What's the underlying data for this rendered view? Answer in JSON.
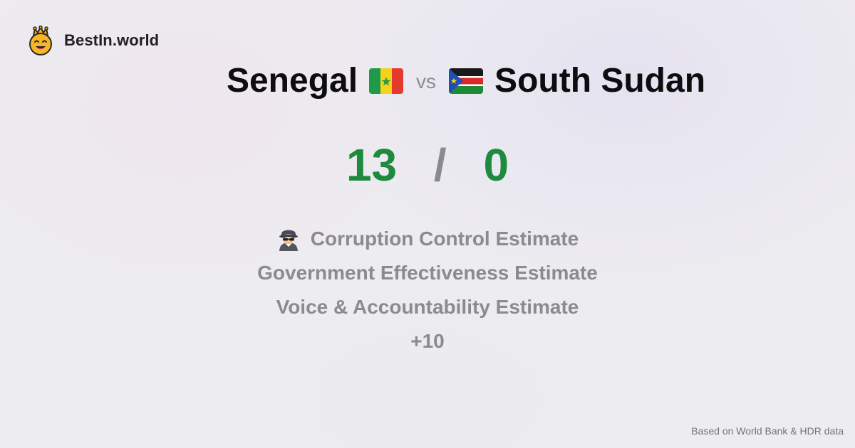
{
  "brand": {
    "name": "BestIn.world",
    "icon": "crowned-smiley-face-icon"
  },
  "comparison": {
    "left_country": "Senegal",
    "left_flag": "senegal-flag-icon",
    "vs_label": "vs",
    "right_country": "South Sudan",
    "right_flag": "south-sudan-flag-icon"
  },
  "score": {
    "left": "13",
    "separator": "/",
    "right": "0",
    "color": "#1e8a3e"
  },
  "metrics": [
    {
      "icon": "detective-icon",
      "label": "Corruption Control Estimate"
    },
    {
      "label": "Government Effectiveness Estimate"
    },
    {
      "label": "Voice & Accountability Estimate"
    },
    {
      "label": "+10"
    }
  ],
  "footer": {
    "source": "Based on World Bank & HDR data"
  }
}
